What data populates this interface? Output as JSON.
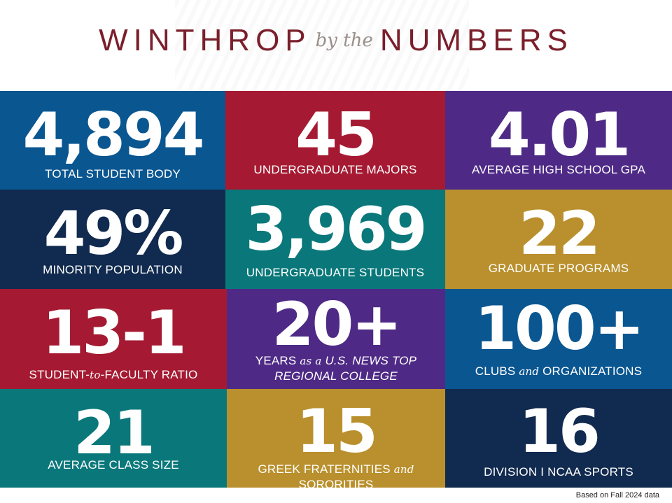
{
  "header": {
    "title_left": "WINTHROP",
    "title_mid": "by the",
    "title_right": "NUMBERS"
  },
  "colors": {
    "blue": "#0a5690",
    "red": "#a51a32",
    "purple": "#4e2a86",
    "navy": "#112a4f",
    "teal": "#0a787a",
    "gold": "#b9902d",
    "title": "#7a1f2b"
  },
  "stats": [
    {
      "value": "4,894",
      "label": "TOTAL STUDENT BODY"
    },
    {
      "value": "45",
      "label": "UNDERGRADUATE MAJORS"
    },
    {
      "value": "4.01",
      "label": "AVERAGE HIGH SCHOOL GPA"
    },
    {
      "value": "49%",
      "label": "MINORITY POPULATION"
    },
    {
      "value": "3,969",
      "label": "UNDERGRADUATE STUDENTS"
    },
    {
      "value": "22",
      "label": "GRADUATE PROGRAMS"
    },
    {
      "value": "13-1",
      "label_a": "STUDENT-",
      "label_b": "to",
      "label_c": "-FACULTY RATIO"
    },
    {
      "value": "20+",
      "label_a": "YEARS ",
      "label_b": "as a",
      "label_c": " U.S. NEWS TOP",
      "label_d": "REGIONAL COLLEGE"
    },
    {
      "value": "100+",
      "label_a": "CLUBS ",
      "label_b": "and",
      "label_c": " ORGANIZATIONS"
    },
    {
      "value": "21",
      "label": "AVERAGE CLASS SIZE"
    },
    {
      "value": "15",
      "label_a": "GREEK FRATERNITIES ",
      "label_b": "and",
      "label_c": " SORORITIES"
    },
    {
      "value": "16",
      "label": "DIVISION I NCAA SPORTS"
    }
  ],
  "footnote": "Based on Fall 2024 data"
}
